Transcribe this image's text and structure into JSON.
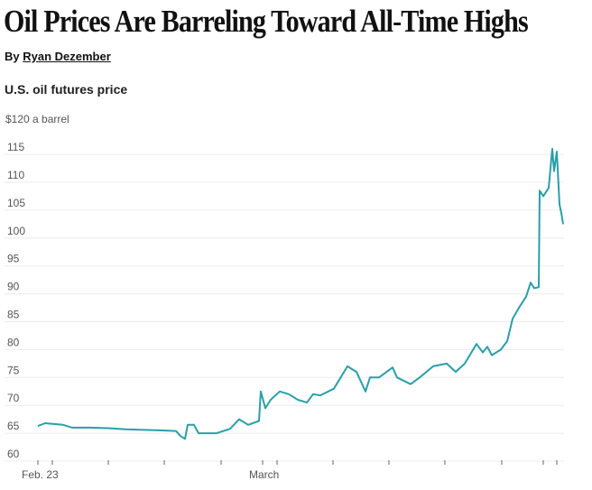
{
  "headline": "Oil Prices Are Barreling Toward All-Time Highs",
  "byline": {
    "prefix": "By",
    "author": "Ryan Dezember"
  },
  "chart_data": {
    "type": "line",
    "title": "U.S. oil futures price",
    "ylabel_top": "$120 a barrel",
    "ylim": [
      60,
      120
    ],
    "yticks": [
      60,
      65,
      70,
      75,
      80,
      85,
      90,
      95,
      100,
      105,
      110,
      115
    ],
    "xtick_labels": [
      "Feb. 23",
      "March"
    ],
    "grid": true,
    "line_color": "#2a9fa8",
    "series": [
      {
        "values": [
          66.3,
          66.8,
          66.5,
          66.0,
          66.0,
          65.9,
          65.7,
          65.6,
          65.5,
          65.4,
          64.5,
          64.0,
          66.5,
          66.5,
          65.0,
          65.0,
          65.8,
          67.5,
          66.5,
          67.2,
          72.5,
          69.5,
          71.0,
          72.5,
          72.0,
          71.0,
          70.5,
          72.0,
          71.8,
          73.0,
          77.0,
          76.0,
          72.5,
          75.0,
          75.0,
          76.8,
          75.0,
          73.8,
          75.0,
          77.0,
          77.5,
          76.0,
          77.5,
          81.0,
          79.5,
          80.5,
          79.0,
          80.0,
          81.5,
          85.5,
          87.5,
          89.5,
          92.0,
          91.0,
          91.2,
          108.5,
          107.5,
          109.0,
          116.0,
          112.0,
          115.5,
          106.0,
          104.5,
          102.5
        ]
      }
    ]
  }
}
